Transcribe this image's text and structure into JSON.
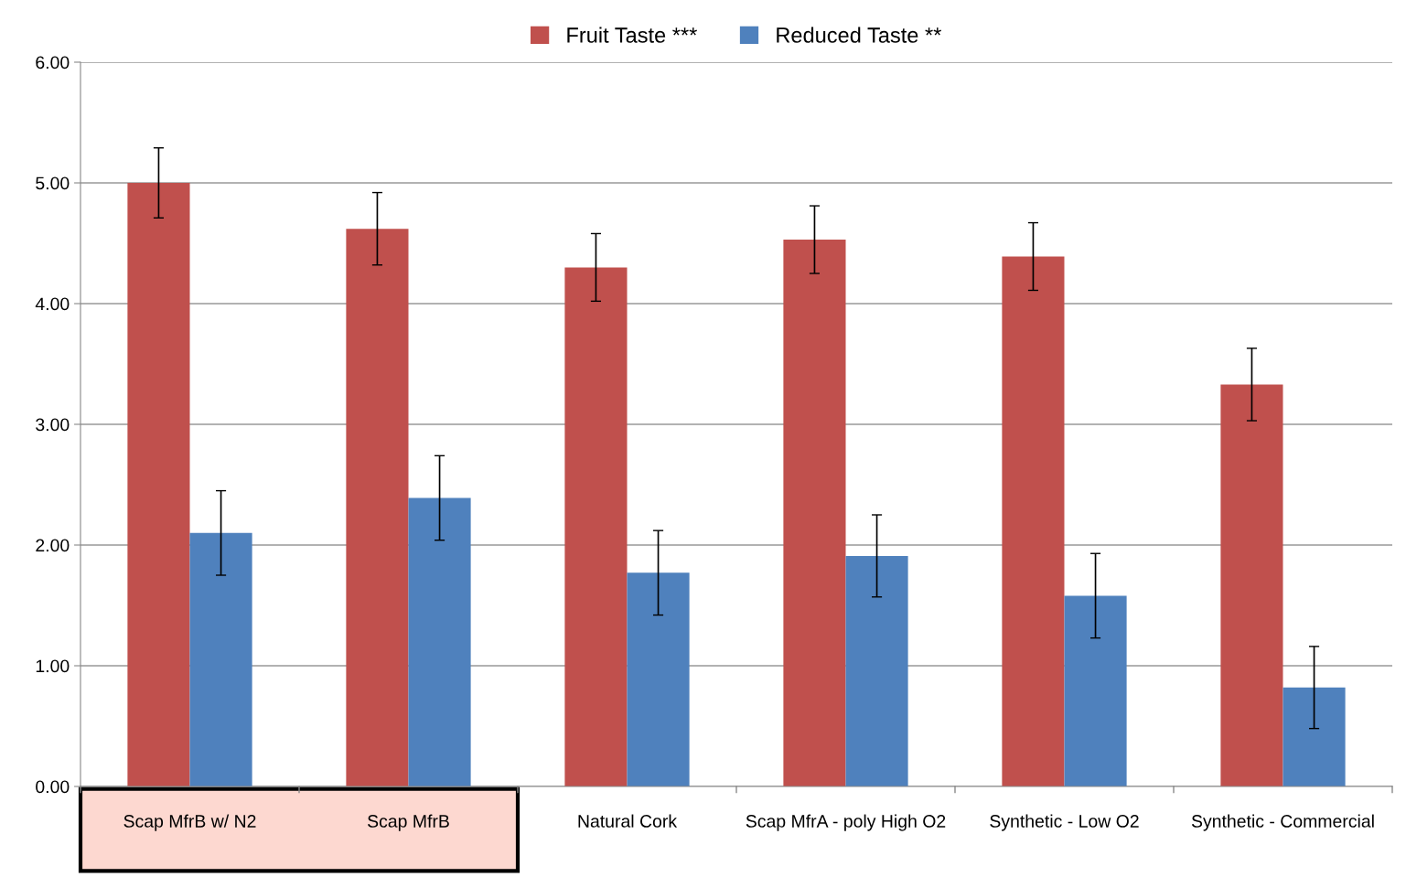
{
  "chart_data": {
    "type": "bar",
    "categories": [
      "Scap MfrB w/ N2",
      "Scap MfrB",
      "Natural Cork",
      "Scap MfrA - poly High O2",
      "Synthetic - Low O2",
      "Synthetic - Commercial"
    ],
    "series": [
      {
        "name": "Fruit Taste ***",
        "color": "#c0504d",
        "values": [
          5.0,
          4.62,
          4.3,
          4.53,
          4.39,
          3.33
        ],
        "errors": [
          0.29,
          0.3,
          0.28,
          0.28,
          0.28,
          0.3
        ]
      },
      {
        "name": "Reduced Taste **",
        "color": "#4f81bd",
        "values": [
          2.1,
          2.39,
          1.77,
          1.91,
          1.58,
          0.82
        ],
        "errors": [
          0.35,
          0.35,
          0.35,
          0.34,
          0.35,
          0.34
        ]
      }
    ],
    "ylim": [
      0,
      6
    ],
    "yticks": [
      {
        "value": 0,
        "label": "0.00"
      },
      {
        "value": 1,
        "label": "1.00"
      },
      {
        "value": 2,
        "label": "2.00"
      },
      {
        "value": 3,
        "label": "3.00"
      },
      {
        "value": 4,
        "label": "4.00"
      },
      {
        "value": 5,
        "label": "5.00"
      },
      {
        "value": 6,
        "label": "6.00"
      }
    ],
    "grid": "y",
    "legend": "top"
  }
}
